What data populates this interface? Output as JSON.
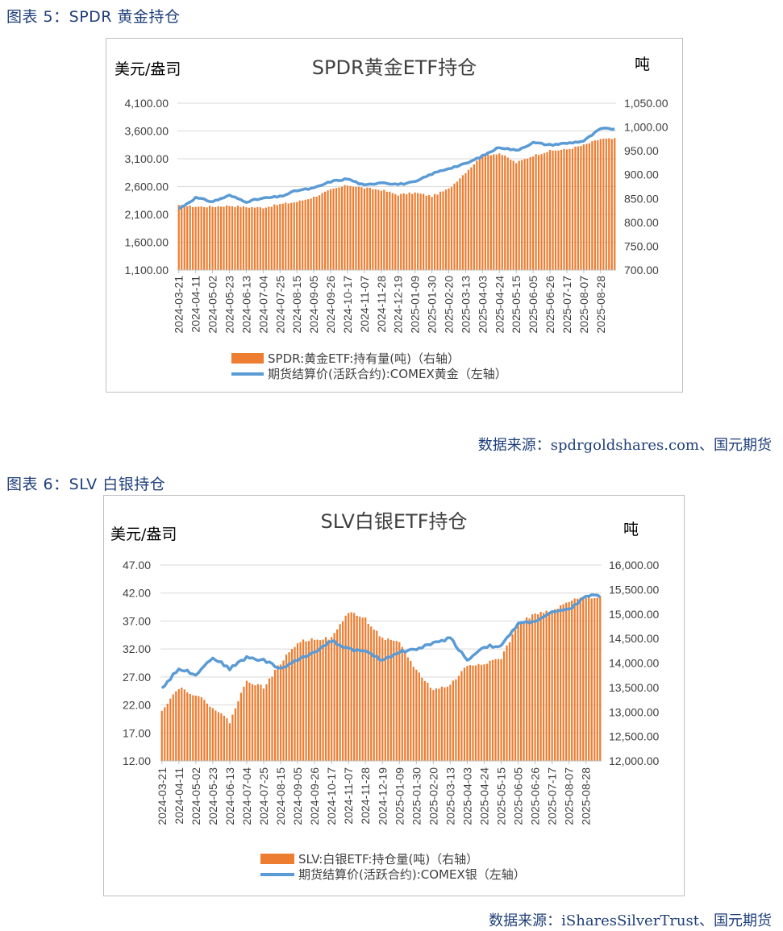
{
  "figures": [
    {
      "caption": "图表 5：SPDR 黄金持仓",
      "source_label": "数据来源：",
      "source_name": "spdrgoldshares.com",
      "source_suffix": "、国元期货"
    },
    {
      "caption": "图表 6：SLV 白银持仓",
      "source_label": "数据来源：",
      "source_name": "iSharesSilverTrust",
      "source_suffix": "、国元期货"
    }
  ],
  "chart_data": [
    {
      "type": "bar",
      "title": "SPDR黄金ETF持仓",
      "left_unit": "美元/盎司",
      "right_unit": "吨",
      "categories": [
        "2024-03-21",
        "2024-04-11",
        "2024-05-02",
        "2024-05-23",
        "2024-06-13",
        "2024-07-04",
        "2024-07-25",
        "2024-08-15",
        "2024-09-05",
        "2024-09-26",
        "2024-10-17",
        "2024-11-07",
        "2024-11-28",
        "2024-12-19",
        "2025-01-09",
        "2025-01-30",
        "2025-02-20",
        "2025-03-13",
        "2025-04-03",
        "2025-04-24",
        "2025-05-15",
        "2025-06-05",
        "2025-06-26",
        "2025-07-17",
        "2025-08-07",
        "2025-08-28"
      ],
      "left_axis": {
        "min": 1100,
        "max": 4100,
        "ticks": [
          "1,100.00",
          "1,600.00",
          "2,100.00",
          "2,600.00",
          "3,100.00",
          "3,600.00",
          "4,100.00"
        ]
      },
      "right_axis": {
        "min": 700,
        "max": 1050,
        "ticks": [
          "700.00",
          "750.00",
          "800.00",
          "850.00",
          "900.00",
          "950.00",
          "1,000.00",
          "1,050.00"
        ]
      },
      "series": [
        {
          "name": "SPDR:黄金ETF:持有量(吨)（右轴）",
          "type": "bar",
          "axis": "right",
          "color": "#ed7d31",
          "values": [
            835,
            833,
            833,
            835,
            832,
            831,
            838,
            843,
            853,
            868,
            878,
            872,
            868,
            858,
            862,
            855,
            870,
            905,
            940,
            945,
            925,
            940,
            950,
            953,
            962,
            975
          ]
        },
        {
          "name": "期货结算价(活跃合约):COMEX黄金（左轴）",
          "type": "line",
          "axis": "left",
          "color": "#5b9bd5",
          "values": [
            2200,
            2400,
            2330,
            2440,
            2330,
            2390,
            2420,
            2530,
            2570,
            2690,
            2740,
            2620,
            2680,
            2640,
            2680,
            2830,
            2930,
            3010,
            3150,
            3310,
            3250,
            3390,
            3350,
            3380,
            3420,
            3640
          ]
        }
      ],
      "grid": true,
      "legend": "bottom"
    },
    {
      "type": "bar",
      "title": "SLV白银ETF持仓",
      "left_unit": "美元/盎司",
      "right_unit": "吨",
      "categories": [
        "2024-03-21",
        "2024-04-11",
        "2024-05-02",
        "2024-05-23",
        "2024-06-13",
        "2024-07-04",
        "2024-07-25",
        "2024-08-15",
        "2024-09-05",
        "2024-09-26",
        "2024-10-17",
        "2024-11-07",
        "2024-11-28",
        "2024-12-19",
        "2025-01-09",
        "2025-01-30",
        "2025-02-20",
        "2025-03-13",
        "2025-04-03",
        "2025-04-24",
        "2025-05-15",
        "2025-06-05",
        "2025-06-26",
        "2025-07-17",
        "2025-08-07",
        "2025-08-28"
      ],
      "left_axis": {
        "min": 12,
        "max": 47,
        "ticks": [
          "12.00",
          "17.00",
          "22.00",
          "27.00",
          "32.00",
          "37.00",
          "42.00",
          "47.00"
        ]
      },
      "right_axis": {
        "min": 12000,
        "max": 16000,
        "ticks": [
          "12,000.00",
          "12,500.00",
          "13,000.00",
          "13,500.00",
          "14,000.00",
          "14,500.00",
          "15,000.00",
          "15,500.00",
          "16,000.00"
        ]
      },
      "series": [
        {
          "name": "SLV:白银ETF:持仓量(吨)（右轴）",
          "type": "bar",
          "axis": "right",
          "color": "#ed7d31",
          "values": [
            13050,
            13500,
            13350,
            13100,
            12800,
            13650,
            13500,
            14000,
            14420,
            14500,
            14500,
            15050,
            14900,
            14500,
            14400,
            13850,
            13450,
            13550,
            13950,
            14000,
            14100,
            14800,
            15000,
            15050,
            15250,
            15350
          ]
        },
        {
          "name": "期货结算价(活跃合约):COMEX银（左轴）",
          "type": "line",
          "axis": "left",
          "color": "#5b9bd5",
          "values": [
            25.0,
            28.5,
            27.5,
            30.5,
            28.5,
            30.5,
            30.0,
            28.5,
            30.0,
            31.5,
            33.5,
            32.0,
            31.5,
            30.0,
            31.5,
            32.0,
            33.0,
            34.0,
            30.0,
            32.5,
            32.5,
            36.5,
            37.0,
            38.5,
            39.0,
            41.5
          ]
        }
      ],
      "grid": true,
      "legend": "bottom"
    }
  ]
}
